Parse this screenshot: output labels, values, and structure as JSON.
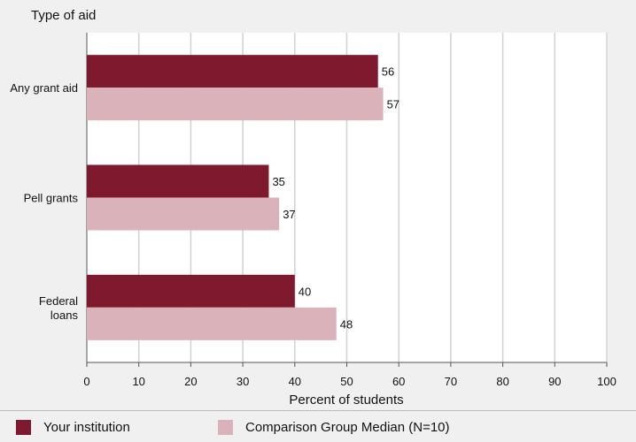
{
  "chart_data": {
    "type": "bar",
    "orientation": "horizontal",
    "y_axis_title": "Type of aid",
    "xlabel": "Percent of students",
    "categories": [
      [
        "Any grant aid"
      ],
      [
        "Pell grants"
      ],
      [
        "Federal",
        "loans"
      ]
    ],
    "series": [
      {
        "name": "Your institution",
        "values": [
          56,
          35,
          40
        ],
        "color": "#7f1a2e"
      },
      {
        "name": "Comparison Group Median (N=10)",
        "values": [
          57,
          37,
          48
        ],
        "color": "#d9b2ba"
      }
    ],
    "xlim": [
      0,
      100
    ],
    "x_ticks": [
      0,
      10,
      20,
      30,
      40,
      50,
      60,
      70,
      80,
      90,
      100
    ],
    "grid": true,
    "legend_position": "bottom"
  },
  "legend": {
    "items": [
      {
        "label": "Your institution",
        "color": "#7f1a2e"
      },
      {
        "label": "Comparison Group Median (N=10)",
        "color": "#d9b2ba"
      }
    ]
  }
}
